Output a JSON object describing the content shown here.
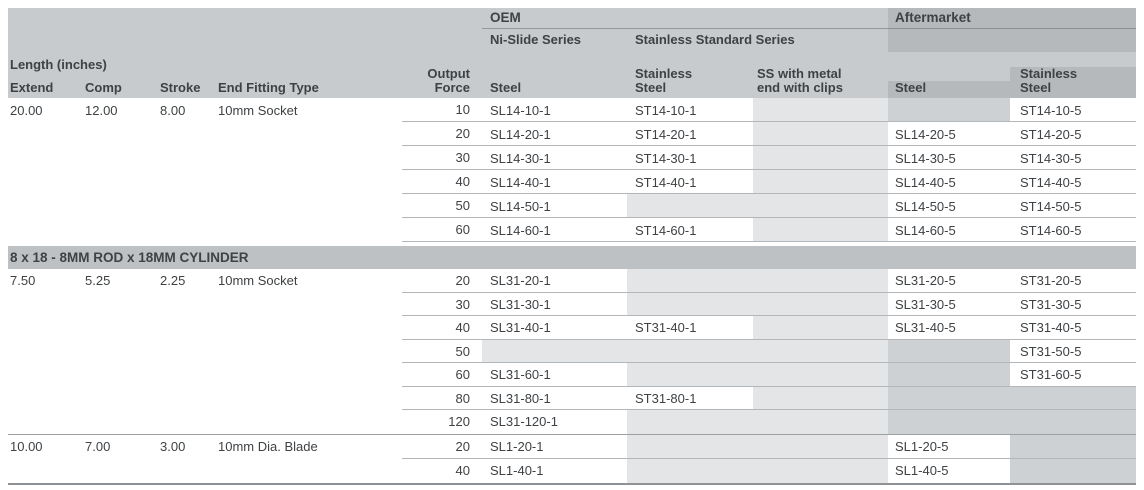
{
  "table": {
    "header": {
      "length_label": "Length (inches)",
      "oem": "OEM",
      "aftermarket": "Aftermarket",
      "ni_slide": "Ni-Slide Series",
      "stainless_standard": "Stainless Standard Series",
      "cols": {
        "extend": "Extend",
        "comp": "Comp",
        "stroke": "Stroke",
        "fitting": "End Fitting Type",
        "force": "Output\nForce",
        "oem_steel": "Steel",
        "oem_ss": "Stainless\nSteel",
        "oem_clips": "SS with metal\nend with clips",
        "am_steel": "Steel",
        "am_ss": "Stainless\nSteel"
      }
    },
    "groups": [
      {
        "title": "",
        "rows": [
          {
            "extend": "20.00",
            "comp": "12.00",
            "stroke": "8.00",
            "fitting": "10mm Socket",
            "force": "10",
            "oem_steel": "SL14-10-1",
            "oem_ss": "ST14-10-1",
            "oem_clips": "",
            "am_steel": "",
            "am_ss": "ST14-10-5"
          },
          {
            "extend": "",
            "comp": "",
            "stroke": "",
            "fitting": "",
            "force": "20",
            "oem_steel": "SL14-20-1",
            "oem_ss": "ST14-20-1",
            "oem_clips": "",
            "am_steel": "SL14-20-5",
            "am_ss": "ST14-20-5"
          },
          {
            "extend": "",
            "comp": "",
            "stroke": "",
            "fitting": "",
            "force": "30",
            "oem_steel": "SL14-30-1",
            "oem_ss": "ST14-30-1",
            "oem_clips": "",
            "am_steel": "SL14-30-5",
            "am_ss": "ST14-30-5"
          },
          {
            "extend": "",
            "comp": "",
            "stroke": "",
            "fitting": "",
            "force": "40",
            "oem_steel": "SL14-40-1",
            "oem_ss": "ST14-40-1",
            "oem_clips": "",
            "am_steel": "SL14-40-5",
            "am_ss": "ST14-40-5"
          },
          {
            "extend": "",
            "comp": "",
            "stroke": "",
            "fitting": "",
            "force": "50",
            "oem_steel": "SL14-50-1",
            "oem_ss": "",
            "oem_clips": "",
            "am_steel": "SL14-50-5",
            "am_ss": "ST14-50-5"
          },
          {
            "extend": "",
            "comp": "",
            "stroke": "",
            "fitting": "",
            "force": "60",
            "oem_steel": "SL14-60-1",
            "oem_ss": "ST14-60-1",
            "oem_clips": "",
            "am_steel": "SL14-60-5",
            "am_ss": "ST14-60-5"
          }
        ]
      },
      {
        "title": "8 x 18 - 8MM ROD x 18MM CYLINDER",
        "rows": [
          {
            "extend": "7.50",
            "comp": "5.25",
            "stroke": "2.25",
            "fitting": "10mm Socket",
            "force": "20",
            "oem_steel": "SL31-20-1",
            "oem_ss": "",
            "oem_clips": "",
            "am_steel": "SL31-20-5",
            "am_ss": "ST31-20-5"
          },
          {
            "extend": "",
            "comp": "",
            "stroke": "",
            "fitting": "",
            "force": "30",
            "oem_steel": "SL31-30-1",
            "oem_ss": "",
            "oem_clips": "",
            "am_steel": "SL31-30-5",
            "am_ss": "ST31-30-5"
          },
          {
            "extend": "",
            "comp": "",
            "stroke": "",
            "fitting": "",
            "force": "40",
            "oem_steel": "SL31-40-1",
            "oem_ss": "ST31-40-1",
            "oem_clips": "",
            "am_steel": "SL31-40-5",
            "am_ss": "ST31-40-5"
          },
          {
            "extend": "",
            "comp": "",
            "stroke": "",
            "fitting": "",
            "force": "50",
            "oem_steel": "",
            "oem_ss": "",
            "oem_clips": "",
            "am_steel": "",
            "am_ss": "ST31-50-5"
          },
          {
            "extend": "",
            "comp": "",
            "stroke": "",
            "fitting": "",
            "force": "60",
            "oem_steel": "SL31-60-1",
            "oem_ss": "",
            "oem_clips": "",
            "am_steel": "",
            "am_ss": "ST31-60-5"
          },
          {
            "extend": "",
            "comp": "",
            "stroke": "",
            "fitting": "",
            "force": "80",
            "oem_steel": "SL31-80-1",
            "oem_ss": "ST31-80-1",
            "oem_clips": "",
            "am_steel": "",
            "am_ss": ""
          },
          {
            "extend": "",
            "comp": "",
            "stroke": "",
            "fitting": "",
            "force": "120",
            "oem_steel": "SL31-120-1",
            "oem_ss": "",
            "oem_clips": "",
            "am_steel": "",
            "am_ss": ""
          }
        ]
      },
      {
        "title": "",
        "rows": [
          {
            "extend": "10.00",
            "comp": "7.00",
            "stroke": "3.00",
            "fitting": "10mm Dia. Blade",
            "force": "20",
            "oem_steel": "SL1-20-1",
            "oem_ss": "",
            "oem_clips": "",
            "am_steel": "SL1-20-5",
            "am_ss": ""
          },
          {
            "extend": "",
            "comp": "",
            "stroke": "",
            "fitting": "",
            "force": "40",
            "oem_steel": "SL1-40-1",
            "oem_ss": "",
            "oem_clips": "",
            "am_steel": "SL1-40-5",
            "am_ss": ""
          }
        ]
      }
    ]
  },
  "colors": {
    "header_light": "#c7cbcd",
    "header_dark": "#b5b9bb",
    "group_bar": "#bdc1c3",
    "empty_oem_cell": "#e3e5e6",
    "empty_aftermarket_cell": "#ced1d3",
    "row_line": "#b3b7b9",
    "text": "#3e4245"
  }
}
